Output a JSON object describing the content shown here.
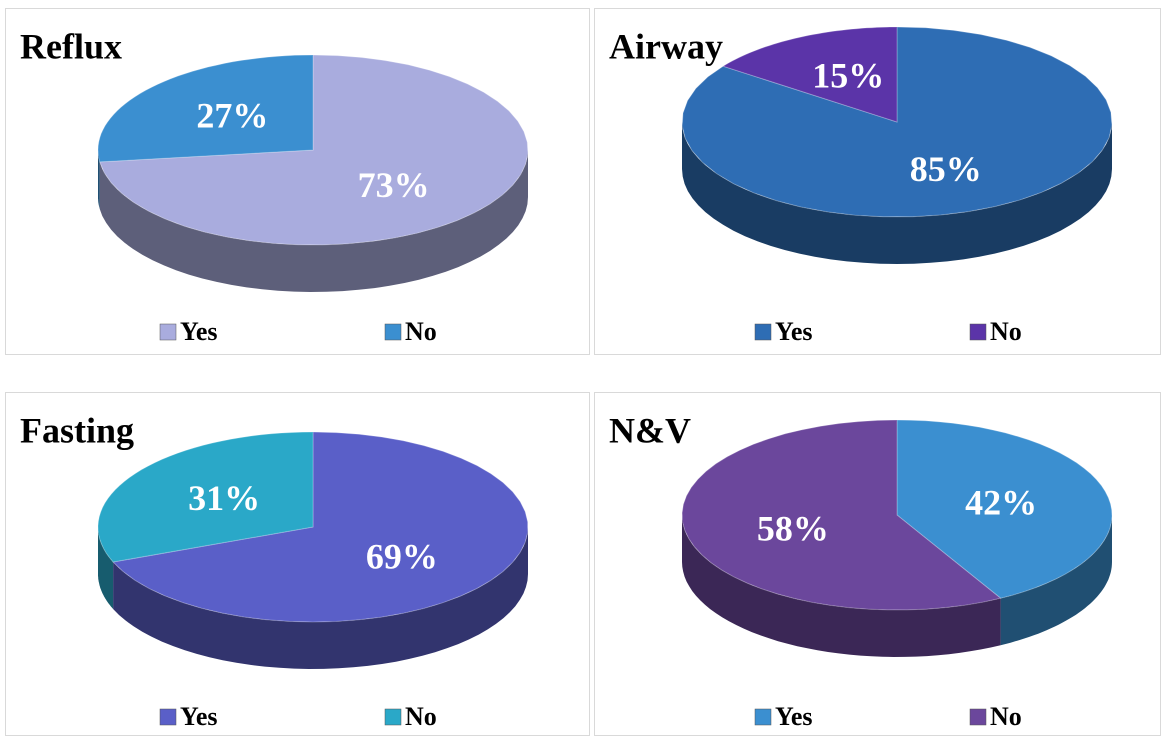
{
  "chart_data": [
    {
      "type": "pie",
      "title": "Reflux",
      "categories": [
        "Yes",
        "No"
      ],
      "values": [
        73,
        27
      ],
      "value_labels": [
        "73%",
        "27%"
      ],
      "colors": [
        "#a9acde",
        "#3b8fd0"
      ]
    },
    {
      "type": "pie",
      "title": "Airway",
      "categories": [
        "Yes",
        "No"
      ],
      "values": [
        85,
        15
      ],
      "value_labels": [
        "85%",
        "15%"
      ],
      "colors": [
        "#2e6db4",
        "#5b34a8"
      ]
    },
    {
      "type": "pie",
      "title": "Fasting",
      "categories": [
        "Yes",
        "No"
      ],
      "values": [
        69,
        31
      ],
      "value_labels": [
        "69%",
        "31%"
      ],
      "colors": [
        "#5a5fc8",
        "#2aa8c8"
      ]
    },
    {
      "type": "pie",
      "title": "N&V",
      "categories": [
        "Yes",
        "No"
      ],
      "values": [
        42,
        58
      ],
      "value_labels": [
        "42%",
        "58%"
      ],
      "colors": [
        "#3b8fd0",
        "#6b479c"
      ]
    }
  ]
}
